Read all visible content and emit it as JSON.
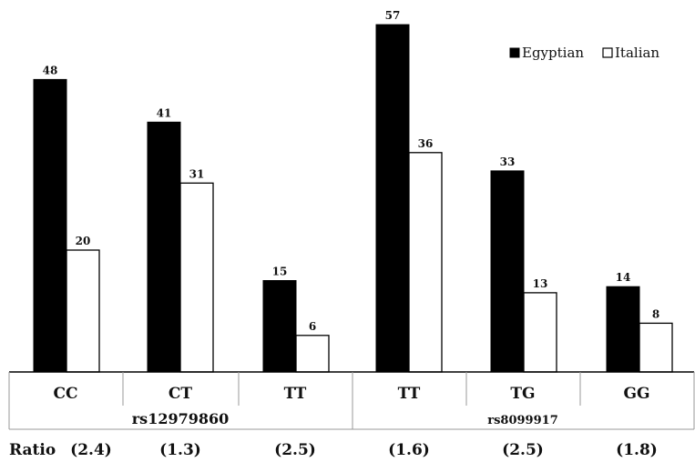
{
  "chart_data": {
    "type": "bar",
    "title": "",
    "xlabel": "",
    "ylabel": "",
    "ylim": [
      0,
      60
    ],
    "grid": false,
    "legend_position": "top-right",
    "categories": [
      "CC",
      "CT",
      "TT",
      "TT",
      "TG",
      "GG"
    ],
    "groups": [
      {
        "label": "rs12979860",
        "categories": [
          "CC",
          "CT",
          "TT"
        ]
      },
      {
        "label": "rs8099917",
        "categories": [
          "TT",
          "TG",
          "GG"
        ]
      }
    ],
    "ratio_label": "Ratio",
    "ratios": [
      "(2.4)",
      "(1.3)",
      "(2.5)",
      "(1.6)",
      "(2.5)",
      "(1.8)"
    ],
    "series": [
      {
        "name": "Egyptian",
        "color": "#000000",
        "values": [
          48,
          41,
          15,
          57,
          33,
          14
        ]
      },
      {
        "name": "Italian",
        "color": "#ffffff",
        "values": [
          20,
          31,
          6,
          36,
          13,
          8
        ]
      }
    ]
  }
}
